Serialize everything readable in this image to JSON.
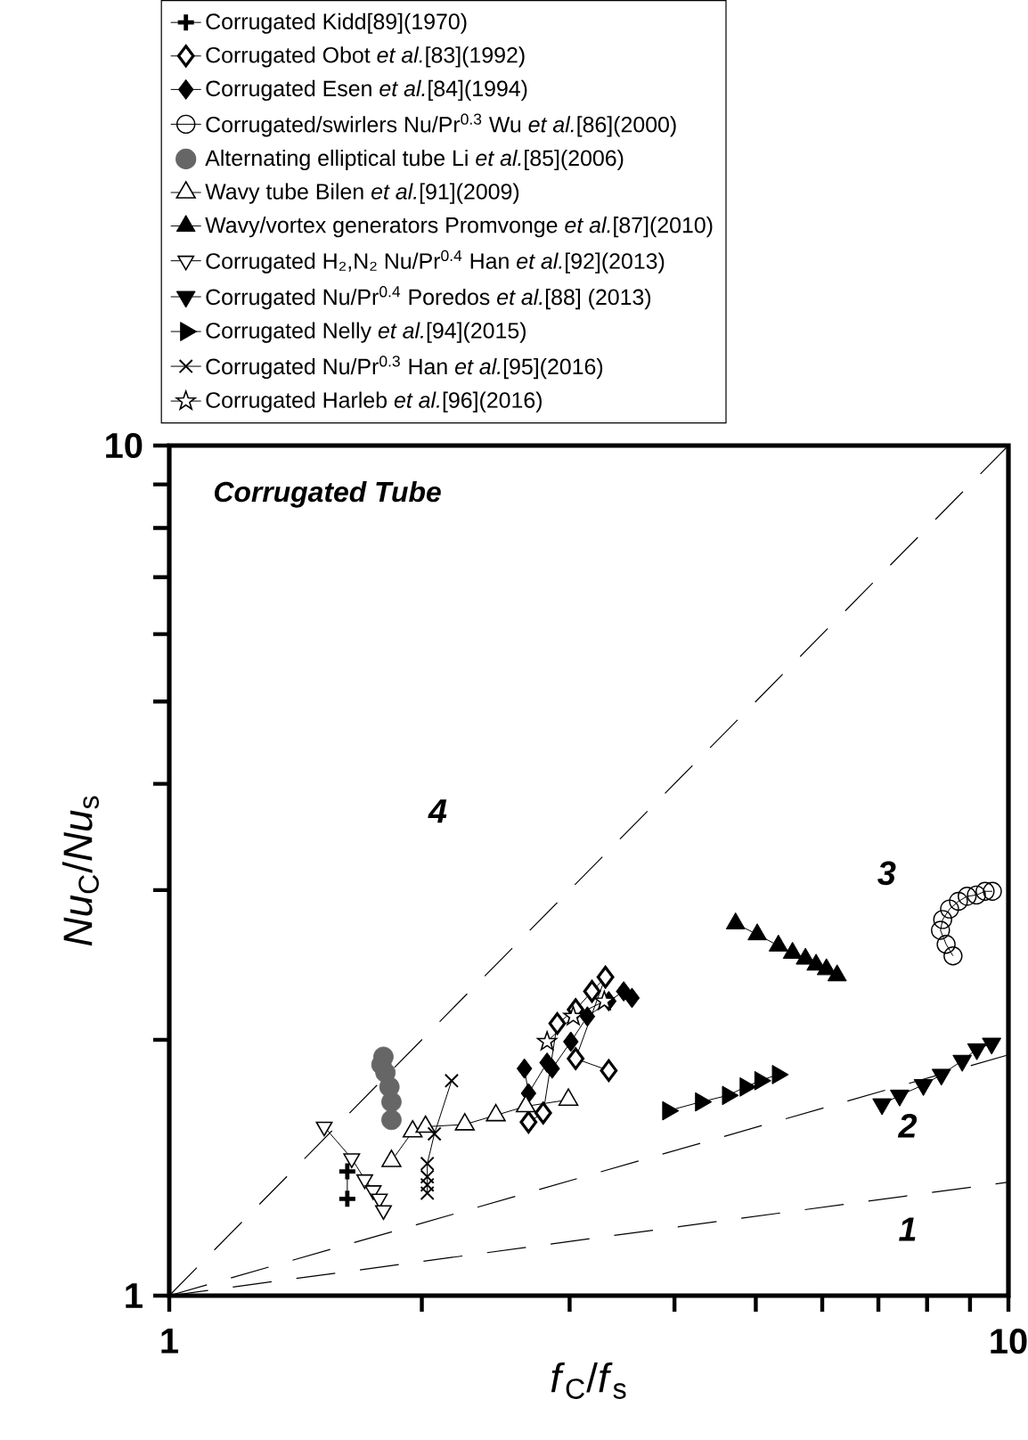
{
  "chart_data": {
    "type": "line",
    "title": "Corrugated Tube",
    "xlabel": "*f*$_{C}$/*f*$_{s}$",
    "ylabel": "*Nu*$_{C}$/*Nu*$_{s}$",
    "log": "xy",
    "legend": "top",
    "xlim": [
      1,
      10
    ],
    "ylim": [
      1,
      10
    ],
    "xticks": [
      1,
      {
        "value": 2,
        "label": null
      },
      {
        "value": 3,
        "label": null
      },
      {
        "value": 4,
        "label": null
      },
      {
        "value": 5,
        "label": null
      },
      {
        "value": 6,
        "label": null
      },
      {
        "value": 7,
        "label": null
      },
      {
        "value": 8,
        "label": null
      },
      {
        "value": 9,
        "label": null
      },
      10
    ],
    "yticks": [
      1,
      {
        "value": 2,
        "label": null
      },
      {
        "value": 3,
        "label": null
      },
      {
        "value": 4,
        "label": null
      },
      {
        "value": 5,
        "label": null
      },
      {
        "value": 6,
        "label": null
      },
      {
        "value": 7,
        "label": null
      },
      {
        "value": 8,
        "label": null
      },
      {
        "value": 9,
        "label": null
      },
      10
    ],
    "series": [
      {
        "name": "Corrugated Kidd[89](1970)",
        "type": "line",
        "marker": "plus",
        "color": "#000000",
        "x": [
          1.63,
          1.63
        ],
        "values": [
          1.4,
          1.3
        ]
      },
      {
        "name": "Corrugated Obot *et al.*[83](1992)",
        "type": "line",
        "marker": "diamond open",
        "color": "#000000",
        "x": [
          2.68,
          2.79,
          2.9,
          3.05,
          3.19,
          3.31,
          3.05,
          3.34
        ],
        "values": [
          1.6,
          1.64,
          2.09,
          2.17,
          2.28,
          2.37,
          1.9,
          1.84
        ]
      },
      {
        "name": "Corrugated Esen *et al.*[84](1994)",
        "type": "line",
        "marker": "diamond",
        "color": "#000000",
        "x": [
          2.65,
          2.68,
          2.82,
          2.86,
          3.01,
          3.15,
          3.34,
          3.48,
          3.56
        ],
        "values": [
          1.85,
          1.73,
          1.88,
          1.85,
          1.99,
          2.13,
          2.22,
          2.28,
          2.24
        ]
      },
      {
        "name": "Corrugated/swirlers Nu/Pr$^{0.3}$ Wu *et al.*[86](2000)",
        "type": "line",
        "marker": "circle open",
        "color": "#000000",
        "x": [
          8.59,
          8.43,
          8.3,
          8.35,
          8.51,
          8.72,
          8.93,
          9.16,
          9.38,
          9.57
        ],
        "values": [
          2.51,
          2.59,
          2.69,
          2.77,
          2.85,
          2.91,
          2.95,
          2.96,
          2.99,
          2.99
        ]
      },
      {
        "name": "Alternating elliptical tube Li *et al.*[85](2006)",
        "type": "scatter",
        "marker": "circle",
        "color": "#666666",
        "x": [
          1.8,
          1.79,
          1.81,
          1.83,
          1.84,
          1.84
        ],
        "values": [
          1.91,
          1.87,
          1.83,
          1.76,
          1.69,
          1.61
        ]
      },
      {
        "name": "Wavy tube Bilen *et al.*[91](2009)",
        "type": "line",
        "marker": "triangle open",
        "color": "#000000",
        "x": [
          1.84,
          1.95,
          2.02,
          2.25,
          2.45,
          2.66,
          2.99
        ],
        "values": [
          1.44,
          1.56,
          1.58,
          1.59,
          1.63,
          1.67,
          1.7
        ]
      },
      {
        "name": "Wavy/vortex generators Promvonge *et al.*[87](2010)",
        "type": "line",
        "marker": "triangle",
        "color": "#000000",
        "x": [
          4.73,
          5.02,
          5.32,
          5.53,
          5.73,
          5.9,
          6.07,
          6.25
        ],
        "values": [
          2.74,
          2.66,
          2.58,
          2.53,
          2.49,
          2.45,
          2.42,
          2.38
        ]
      },
      {
        "name": "Corrugated H₂,N₂ Nu/Pr$^{0.4}$ Han *et al.*[92](2013)",
        "type": "line",
        "marker": "triangle down open",
        "color": "#000000",
        "x": [
          1.53,
          1.65,
          1.71,
          1.75,
          1.78,
          1.8
        ],
        "values": [
          1.58,
          1.45,
          1.37,
          1.33,
          1.3,
          1.26
        ]
      },
      {
        "name": "Corrugated Nu/Pr$^{0.4}$ Poredos *et al.*[88] (2013)",
        "type": "line",
        "marker": "triangle down",
        "color": "#000000",
        "x": [
          7.07,
          7.42,
          7.92,
          8.32,
          8.81,
          9.17,
          9.55
        ],
        "values": [
          1.68,
          1.72,
          1.77,
          1.82,
          1.89,
          1.95,
          1.98
        ]
      },
      {
        "name": "Corrugated Nelly *et al.*[94](2015)",
        "type": "line",
        "marker": "triangle right",
        "color": "#000000",
        "x": [
          3.93,
          4.3,
          4.63,
          4.86,
          5.06,
          5.31
        ],
        "values": [
          1.65,
          1.69,
          1.72,
          1.76,
          1.79,
          1.82
        ]
      },
      {
        "name": "Corrugated Nu/Pr$^{0.3}$ Han *et al.*[95](2016)",
        "type": "line",
        "marker": "cross",
        "color": "#000000",
        "x": [
          2.03,
          2.03,
          2.03,
          2.03,
          2.07,
          2.17
        ],
        "values": [
          1.32,
          1.35,
          1.38,
          1.43,
          1.55,
          1.79
        ]
      },
      {
        "name": "Corrugated Harleb *et al.*[96](2016)",
        "marker": "star",
        "color": "#000000",
        "x": [
          2.82,
          3.03,
          3.3
        ],
        "values": [
          1.99,
          2.13,
          2.22
        ]
      },
      {
        "type": "line",
        "marker": "none",
        "line_style": "dashed",
        "color": "#000000",
        "x": [
          1,
          10
        ],
        "values": [
          1,
          10
        ]
      },
      {
        "type": "line",
        "marker": "none",
        "line_style": "dashed",
        "color": "#000000",
        "x": [
          1,
          10
        ],
        "values": [
          1,
          1.92
        ]
      },
      {
        "type": "line",
        "marker": "none",
        "line_style": "dashed",
        "color": "#000000",
        "x": [
          1,
          10
        ],
        "values": [
          1,
          1.36
        ]
      }
    ],
    "annotations": [
      "4",
      "3",
      "2",
      "1"
    ]
  }
}
